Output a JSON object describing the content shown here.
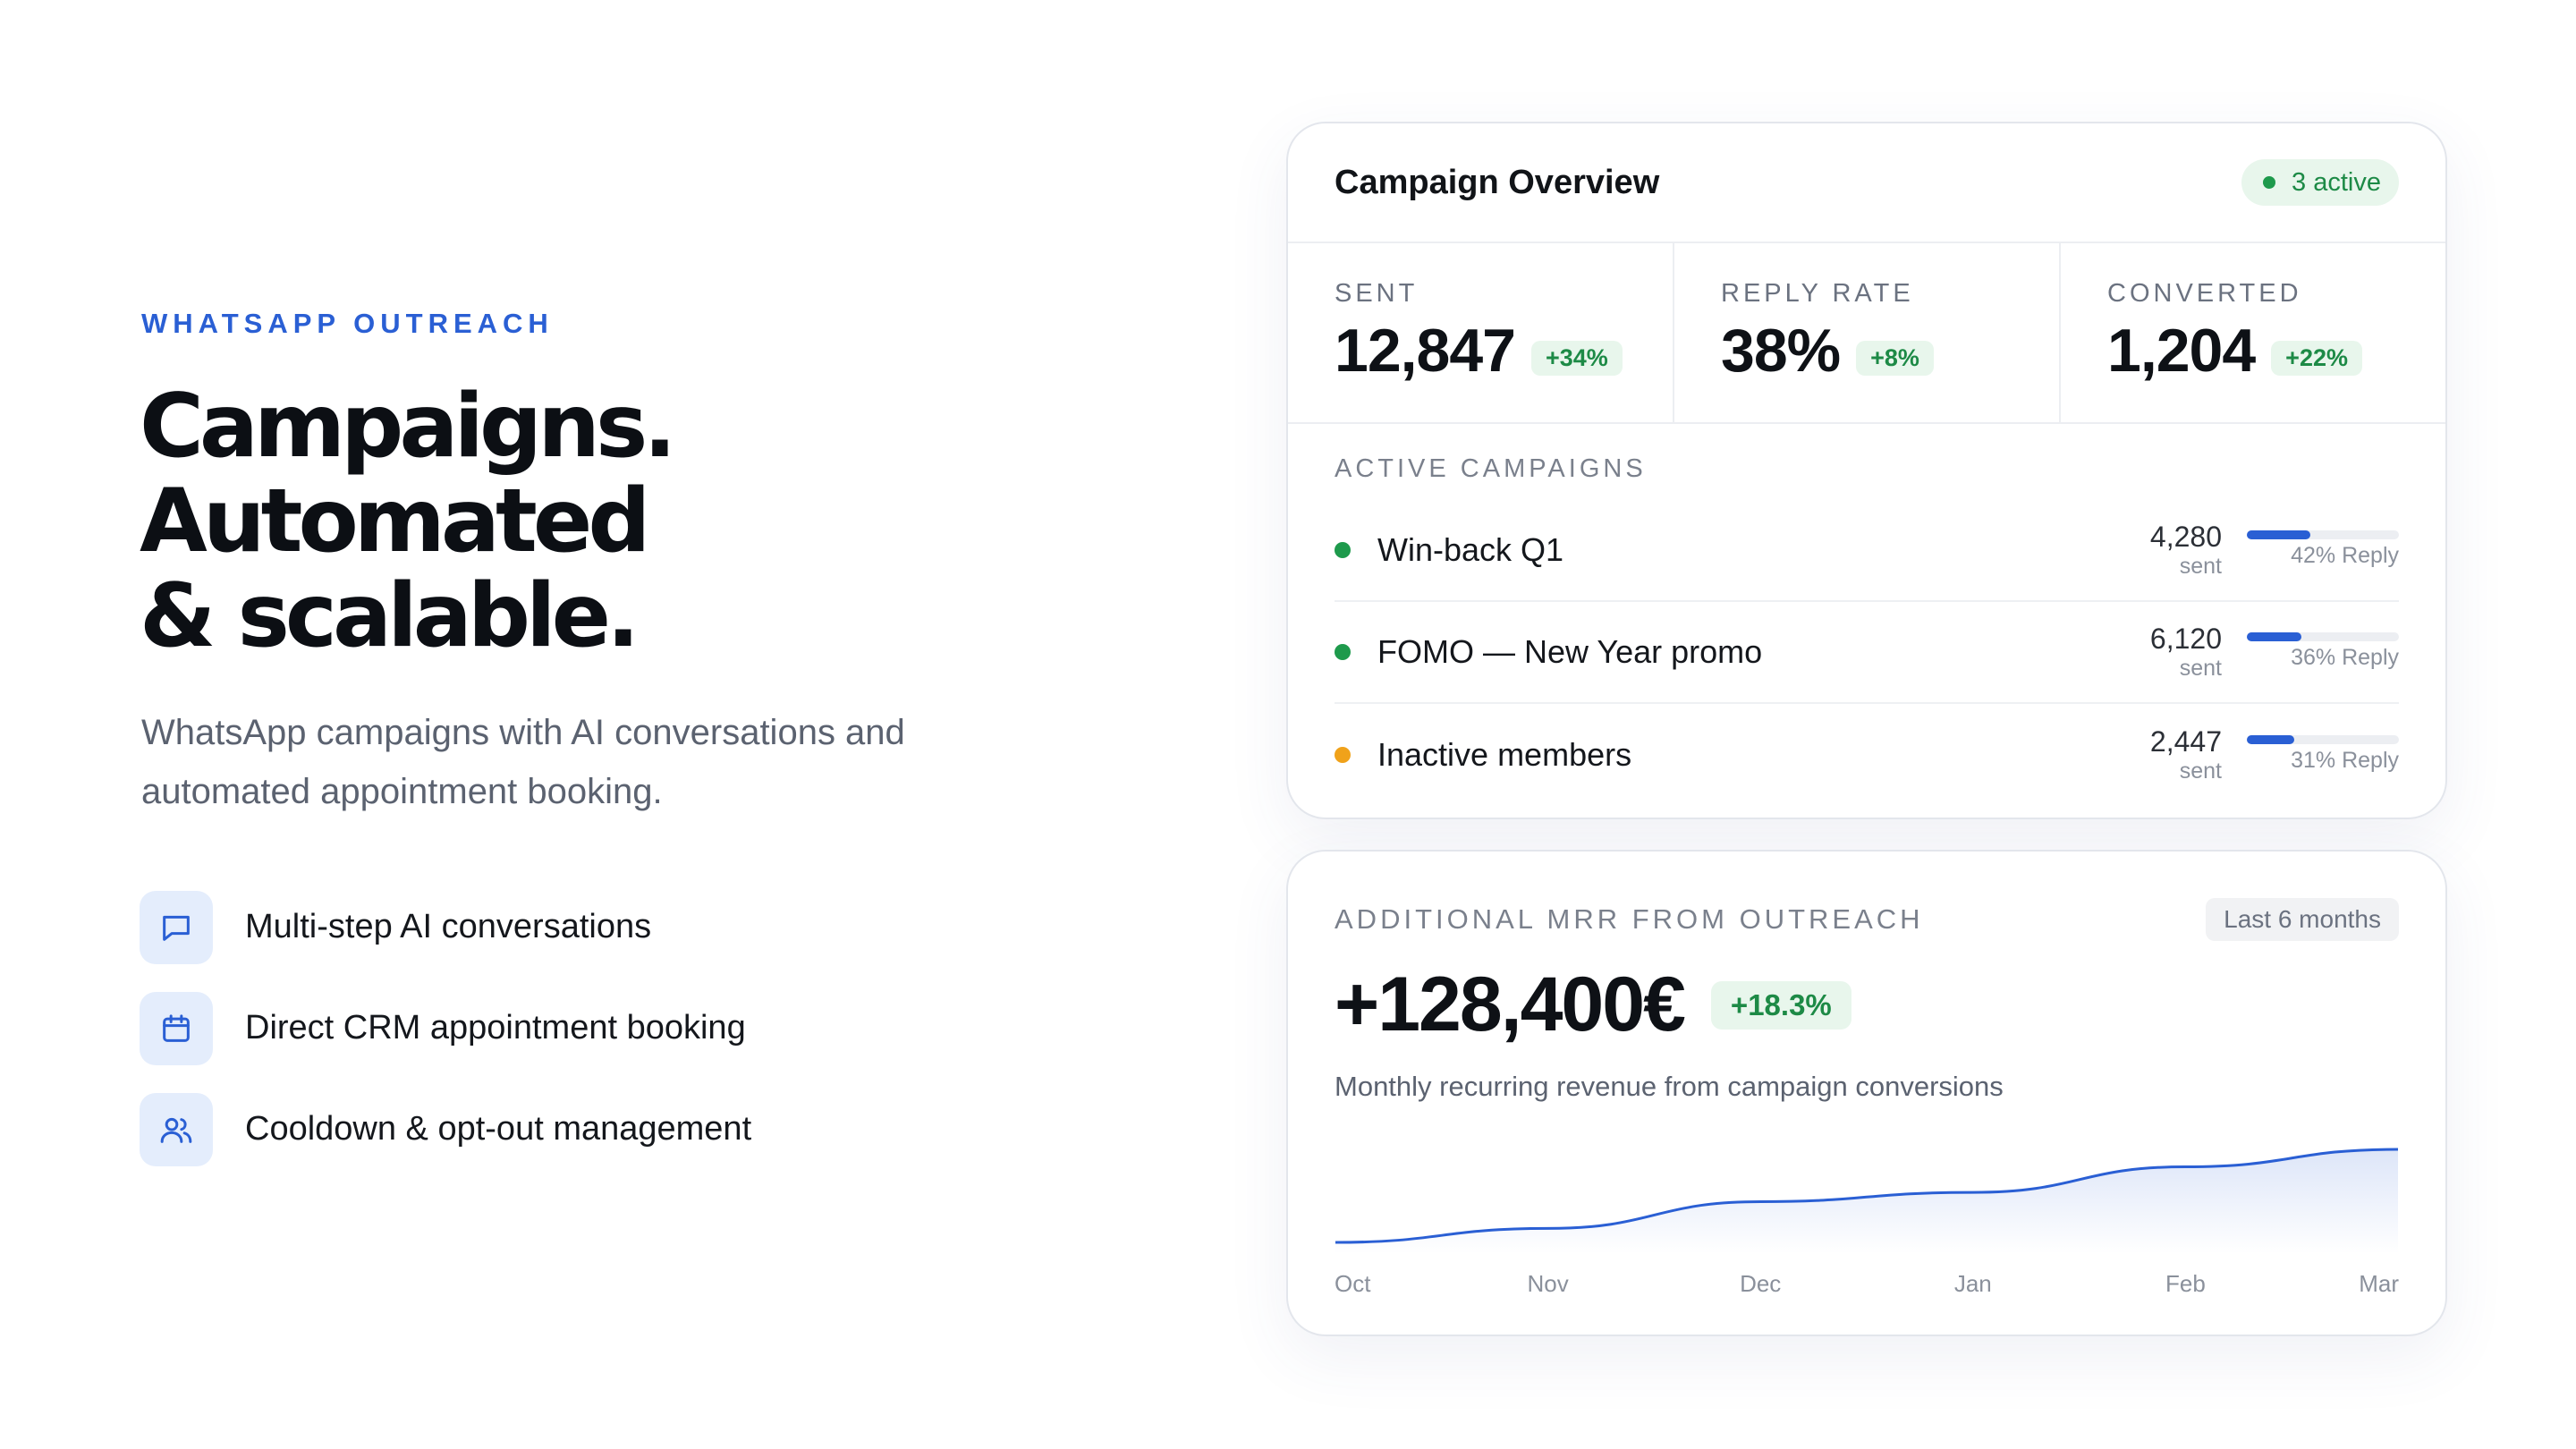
{
  "hero": {
    "eyebrow": "WHATSAPP OUTREACH",
    "headline": [
      "Campaigns.",
      "Automated",
      "& scalable."
    ],
    "subtitle": "WhatsApp campaigns with AI conversations and automated appointment booking.",
    "features": [
      {
        "icon": "chat-bubble-icon",
        "label": "Multi-step AI conversations"
      },
      {
        "icon": "calendar-icon",
        "label": "Direct CRM appointment booking"
      },
      {
        "icon": "users-icon",
        "label": "Cooldown & opt-out management"
      }
    ]
  },
  "overview": {
    "title": "Campaign Overview",
    "active_badge": "3 active",
    "stats": [
      {
        "label": "SENT",
        "value": "12,847",
        "delta": "+34%"
      },
      {
        "label": "REPLY RATE",
        "value": "38%",
        "delta": "+8%"
      },
      {
        "label": "CONVERTED",
        "value": "1,204",
        "delta": "+22%"
      }
    ],
    "section_label": "ACTIVE CAMPAIGNS",
    "campaigns": [
      {
        "name": "Win-back Q1",
        "status_color": "#1e9a4c",
        "sent": "4,280",
        "sent_unit": "sent",
        "reply_label": "42% Reply",
        "reply_rate": 0.42
      },
      {
        "name": "FOMO — New Year promo",
        "status_color": "#1e9a4c",
        "sent": "6,120",
        "sent_unit": "sent",
        "reply_label": "36% Reply",
        "reply_rate": 0.36
      },
      {
        "name": "Inactive members",
        "status_color": "#f0a21a",
        "sent": "2,447",
        "sent_unit": "sent",
        "reply_label": "31% Reply",
        "reply_rate": 0.31
      }
    ]
  },
  "mrr": {
    "label": "ADDITIONAL MRR FROM OUTREACH",
    "range": "Last 6 months",
    "value": "+128,400€",
    "delta": "+18.3%",
    "description": "Monthly recurring revenue from campaign conversions"
  },
  "chart_data": {
    "type": "area",
    "categories": [
      "Oct",
      "Nov",
      "Dec",
      "Jan",
      "Feb",
      "Mar"
    ],
    "values": [
      0.1,
      0.22,
      0.45,
      0.53,
      0.75,
      0.9
    ],
    "line_color": "#2a5fd4",
    "ylim": [
      0,
      1
    ],
    "grid": false
  }
}
